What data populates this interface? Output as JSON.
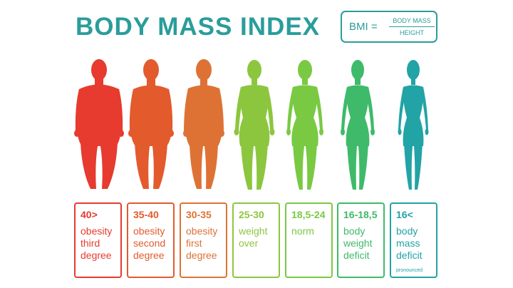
{
  "title": "BODY MASS INDEX",
  "formula": {
    "lhs": "BMI =",
    "numerator": "BODY MASS",
    "denominator": "HEIGHT"
  },
  "categories": [
    {
      "range": "40>",
      "lines": [
        "obesity",
        "third",
        "degree"
      ],
      "note": "",
      "color": "#e63b2e",
      "body": "obese3"
    },
    {
      "range": "35-40",
      "lines": [
        "obesity",
        "second",
        "degree"
      ],
      "note": "",
      "color": "#e35a2c",
      "body": "obese2"
    },
    {
      "range": "30-35",
      "lines": [
        "obesity",
        "first",
        "degree"
      ],
      "note": "",
      "color": "#de7235",
      "body": "obese1"
    },
    {
      "range": "25-30",
      "lines": [
        "weight",
        "over"
      ],
      "note": "",
      "color": "#8cc63f",
      "body": "over"
    },
    {
      "range": "18,5-24",
      "lines": [
        "norm"
      ],
      "note": "",
      "color": "#7ac943",
      "body": "norm"
    },
    {
      "range": "16-18,5",
      "lines": [
        "body",
        "weight",
        "deficit"
      ],
      "note": "",
      "color": "#3fba6a",
      "body": "deficit"
    },
    {
      "range": "16<",
      "lines": [
        "body",
        "mass",
        "deficit"
      ],
      "note": "pronounced",
      "color": "#22a3a6",
      "body": "thin"
    }
  ]
}
